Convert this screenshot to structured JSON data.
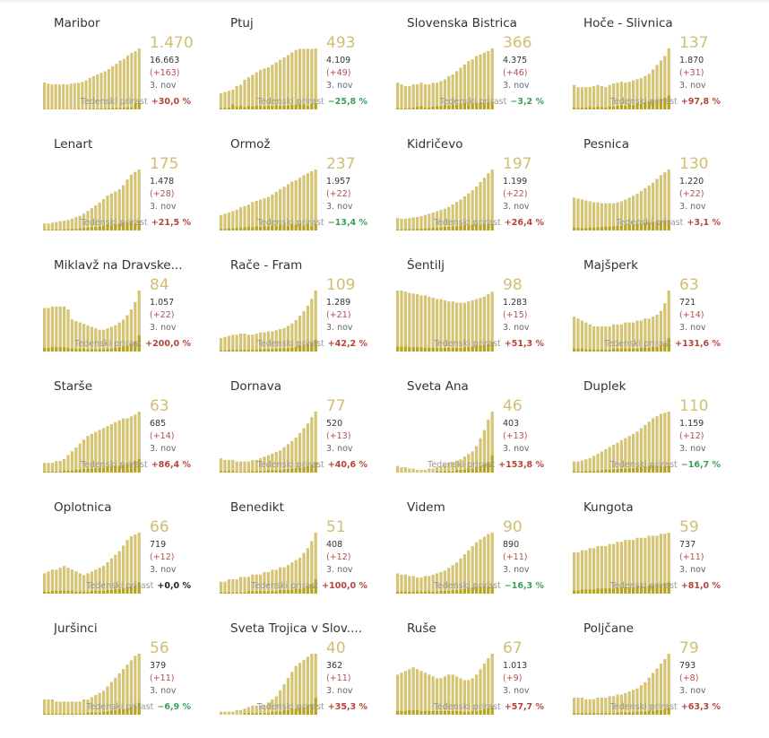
{
  "labels": {
    "weekly": "Tedenski prirast",
    "date": "3. nov"
  },
  "colors": {
    "bar": "#d4c473",
    "bar_dark": "#b9a41f",
    "active": "#cfbf72",
    "increase": "#b4453a",
    "decrease": "#39a05a"
  },
  "chart_data": [
    {
      "type": "bar",
      "name": "Maribor",
      "active": "1.470",
      "total": "16.663",
      "diff": "(+163)",
      "weekly": "+30,0 %",
      "trend": "pos",
      "values": [
        650,
        620,
        600,
        610,
        600,
        610,
        600,
        620,
        630,
        640,
        660,
        700,
        760,
        800,
        840,
        880,
        920,
        970,
        1040,
        1100,
        1180,
        1220,
        1300,
        1360,
        1400,
        1470
      ],
      "new_values": [
        8,
        7,
        6,
        6,
        7,
        8,
        8,
        7,
        9,
        10,
        12,
        14,
        18,
        20,
        22,
        24,
        26,
        30,
        32,
        38,
        40,
        42,
        46,
        50,
        140,
        163
      ]
    },
    {
      "type": "bar",
      "name": "Ptuj",
      "active": "493",
      "total": "4.109",
      "diff": "(+49)",
      "weekly": "−25,8 %",
      "trend": "neg",
      "values": [
        130,
        140,
        150,
        160,
        190,
        200,
        240,
        260,
        280,
        300,
        320,
        330,
        340,
        360,
        380,
        400,
        420,
        440,
        460,
        480,
        490,
        490,
        490,
        490,
        493
      ],
      "new_values": [
        10,
        12,
        14,
        40,
        20,
        30,
        18,
        26,
        22,
        30,
        28,
        24,
        30,
        26,
        34,
        28,
        30,
        32,
        38,
        36,
        40,
        42,
        30,
        44,
        49
      ]
    },
    {
      "type": "bar",
      "name": "Slovenska Bistrica",
      "active": "366",
      "total": "4.375",
      "diff": "(+46)",
      "weekly": "−3,2 %",
      "trend": "neg",
      "values": [
        160,
        150,
        140,
        140,
        150,
        150,
        160,
        150,
        150,
        160,
        160,
        170,
        180,
        200,
        210,
        230,
        250,
        270,
        290,
        300,
        320,
        330,
        340,
        350,
        366
      ],
      "new_values": [
        8,
        6,
        6,
        8,
        10,
        14,
        20,
        10,
        12,
        16,
        18,
        20,
        26,
        22,
        30,
        28,
        34,
        40,
        30,
        38,
        40,
        42,
        36,
        44,
        46
      ]
    },
    {
      "type": "bar",
      "name": "Hoče - Slivnica",
      "active": "137",
      "total": "1.870",
      "diff": "(+31)",
      "weekly": "+97,8 %",
      "trend": "pos",
      "values": [
        55,
        50,
        50,
        50,
        50,
        52,
        55,
        52,
        50,
        55,
        58,
        60,
        62,
        60,
        62,
        65,
        68,
        70,
        75,
        80,
        90,
        100,
        110,
        120,
        137
      ],
      "new_values": [
        4,
        3,
        4,
        4,
        5,
        4,
        6,
        5,
        4,
        6,
        6,
        8,
        10,
        8,
        12,
        10,
        14,
        12,
        16,
        18,
        20,
        22,
        24,
        26,
        31
      ]
    },
    {
      "type": "bar",
      "name": "Lenart",
      "active": "175",
      "total": "1.478",
      "diff": "(+28)",
      "weekly": "+21,5 %",
      "trend": "pos",
      "values": [
        20,
        20,
        22,
        24,
        26,
        28,
        30,
        34,
        38,
        42,
        48,
        56,
        64,
        72,
        80,
        90,
        100,
        106,
        112,
        118,
        130,
        146,
        160,
        168,
        175
      ],
      "new_values": [
        2,
        2,
        2,
        3,
        3,
        3,
        4,
        4,
        5,
        6,
        7,
        8,
        9,
        10,
        12,
        14,
        16,
        15,
        18,
        20,
        22,
        24,
        26,
        20,
        28
      ]
    },
    {
      "type": "bar",
      "name": "Ormož",
      "active": "237",
      "total": "1.957",
      "diff": "(+22)",
      "weekly": "−13,4 %",
      "trend": "neg",
      "values": [
        60,
        65,
        70,
        75,
        80,
        90,
        95,
        100,
        110,
        115,
        120,
        125,
        130,
        140,
        150,
        160,
        170,
        180,
        190,
        195,
        205,
        215,
        222,
        230,
        237
      ],
      "new_values": [
        6,
        6,
        8,
        8,
        10,
        10,
        12,
        14,
        12,
        16,
        14,
        18,
        16,
        20,
        18,
        22,
        20,
        18,
        24,
        22,
        26,
        20,
        24,
        18,
        22
      ]
    },
    {
      "type": "bar",
      "name": "Kidričevo",
      "active": "197",
      "total": "1.199",
      "diff": "(+22)",
      "weekly": "+26,4 %",
      "trend": "pos",
      "values": [
        40,
        38,
        38,
        40,
        42,
        44,
        46,
        50,
        54,
        58,
        62,
        66,
        70,
        76,
        84,
        92,
        100,
        110,
        120,
        130,
        142,
        156,
        170,
        185,
        197
      ],
      "new_values": [
        3,
        3,
        4,
        4,
        5,
        5,
        6,
        6,
        7,
        8,
        9,
        10,
        11,
        12,
        13,
        14,
        16,
        18,
        17,
        19,
        20,
        18,
        21,
        20,
        22
      ]
    },
    {
      "type": "bar",
      "name": "Pesnica",
      "active": "130",
      "total": "1.220",
      "diff": "(+22)",
      "weekly": "+3,1 %",
      "trend": "pos",
      "values": [
        70,
        68,
        66,
        64,
        62,
        60,
        60,
        58,
        58,
        58,
        58,
        60,
        62,
        66,
        70,
        74,
        78,
        84,
        90,
        96,
        102,
        110,
        118,
        124,
        130
      ],
      "new_values": [
        6,
        6,
        5,
        5,
        6,
        6,
        7,
        7,
        8,
        8,
        9,
        10,
        10,
        11,
        12,
        13,
        14,
        14,
        16,
        17,
        18,
        19,
        20,
        21,
        22
      ]
    },
    {
      "type": "bar",
      "name": "Miklavž na Dravske...",
      "active": "84",
      "total": "1.057",
      "diff": "(+22)",
      "weekly": "+200,0 %",
      "trend": "pos",
      "values": [
        60,
        60,
        62,
        62,
        62,
        62,
        58,
        44,
        42,
        40,
        38,
        36,
        34,
        32,
        30,
        30,
        32,
        34,
        36,
        40,
        44,
        50,
        58,
        68,
        84
      ],
      "new_values": [
        5,
        5,
        6,
        6,
        6,
        6,
        5,
        4,
        4,
        4,
        4,
        3,
        3,
        3,
        3,
        3,
        4,
        4,
        5,
        6,
        7,
        8,
        10,
        14,
        22
      ]
    },
    {
      "type": "bar",
      "name": "Rače - Fram",
      "active": "109",
      "total": "1.289",
      "diff": "(+21)",
      "weekly": "+42,2 %",
      "trend": "pos",
      "values": [
        24,
        26,
        28,
        30,
        30,
        32,
        32,
        30,
        30,
        32,
        34,
        34,
        36,
        36,
        38,
        40,
        42,
        46,
        50,
        56,
        64,
        72,
        82,
        94,
        109
      ],
      "new_values": [
        2,
        2,
        3,
        3,
        3,
        3,
        3,
        3,
        3,
        3,
        4,
        4,
        4,
        4,
        5,
        5,
        6,
        6,
        7,
        8,
        10,
        12,
        14,
        16,
        21
      ]
    },
    {
      "type": "bar",
      "name": "Šentilj",
      "active": "98",
      "total": "1.283",
      "diff": "(+15)",
      "weekly": "+51,3 %",
      "trend": "pos",
      "values": [
        100,
        100,
        98,
        96,
        95,
        94,
        92,
        92,
        90,
        88,
        86,
        86,
        84,
        82,
        82,
        80,
        80,
        80,
        82,
        84,
        86,
        88,
        90,
        94,
        98
      ],
      "new_values": [
        8,
        8,
        8,
        7,
        7,
        7,
        7,
        6,
        6,
        6,
        6,
        6,
        6,
        6,
        6,
        6,
        6,
        7,
        7,
        8,
        9,
        10,
        11,
        12,
        15
      ]
    },
    {
      "type": "bar",
      "name": "Majšperk",
      "active": "63",
      "total": "721",
      "diff": "(+14)",
      "weekly": "+131,6 %",
      "trend": "pos",
      "values": [
        36,
        34,
        32,
        30,
        28,
        26,
        26,
        26,
        26,
        26,
        28,
        28,
        28,
        30,
        30,
        30,
        32,
        32,
        34,
        34,
        36,
        38,
        42,
        50,
        63
      ],
      "new_values": [
        3,
        3,
        3,
        2,
        2,
        2,
        2,
        2,
        2,
        2,
        3,
        3,
        3,
        3,
        3,
        3,
        3,
        4,
        4,
        4,
        5,
        5,
        6,
        8,
        14
      ]
    },
    {
      "type": "bar",
      "name": "Starše",
      "active": "63",
      "total": "685",
      "diff": "(+14)",
      "weekly": "+86,4 %",
      "trend": "pos",
      "values": [
        10,
        10,
        10,
        12,
        12,
        14,
        18,
        22,
        26,
        30,
        34,
        38,
        40,
        42,
        44,
        46,
        48,
        50,
        52,
        54,
        56,
        56,
        58,
        60,
        63
      ],
      "new_values": [
        1,
        1,
        1,
        1,
        1,
        2,
        2,
        2,
        3,
        3,
        4,
        4,
        4,
        5,
        5,
        5,
        6,
        6,
        7,
        7,
        8,
        9,
        10,
        12,
        14
      ]
    },
    {
      "type": "bar",
      "name": "Dornava",
      "active": "77",
      "total": "520",
      "diff": "(+13)",
      "weekly": "+40,6 %",
      "trend": "pos",
      "values": [
        18,
        16,
        16,
        16,
        14,
        14,
        14,
        14,
        16,
        16,
        18,
        20,
        22,
        24,
        26,
        28,
        32,
        36,
        40,
        44,
        50,
        56,
        62,
        70,
        77
      ],
      "new_values": [
        2,
        2,
        2,
        2,
        1,
        1,
        1,
        1,
        2,
        2,
        2,
        2,
        3,
        3,
        3,
        3,
        4,
        4,
        5,
        5,
        6,
        7,
        8,
        10,
        13
      ]
    },
    {
      "type": "bar",
      "name": "Sveta Ana",
      "active": "46",
      "total": "403",
      "diff": "(+13)",
      "weekly": "+153,8 %",
      "trend": "pos",
      "values": [
        5,
        4,
        4,
        3,
        3,
        2,
        2,
        2,
        3,
        3,
        4,
        5,
        6,
        7,
        8,
        9,
        10,
        12,
        14,
        16,
        20,
        26,
        32,
        40,
        46
      ],
      "new_values": [
        0,
        0,
        0,
        0,
        0,
        0,
        0,
        0,
        0,
        0,
        1,
        1,
        1,
        1,
        1,
        2,
        2,
        2,
        3,
        3,
        4,
        5,
        6,
        8,
        13
      ]
    },
    {
      "type": "bar",
      "name": "Duplek",
      "active": "110",
      "total": "1.159",
      "diff": "(+12)",
      "weekly": "−16,7 %",
      "trend": "neg",
      "values": [
        20,
        20,
        22,
        24,
        26,
        30,
        34,
        38,
        42,
        46,
        50,
        54,
        58,
        62,
        66,
        70,
        74,
        80,
        86,
        92,
        98,
        102,
        106,
        108,
        110
      ],
      "new_values": [
        2,
        2,
        2,
        3,
        3,
        3,
        4,
        4,
        5,
        5,
        6,
        6,
        7,
        7,
        8,
        8,
        9,
        10,
        11,
        12,
        13,
        12,
        12,
        11,
        12
      ]
    },
    {
      "type": "bar",
      "name": "Oplotnica",
      "active": "66",
      "total": "719",
      "diff": "(+12)",
      "weekly": "+0,0 %",
      "trend": "zero",
      "values": [
        22,
        24,
        26,
        26,
        28,
        30,
        28,
        26,
        24,
        22,
        20,
        22,
        24,
        26,
        28,
        30,
        34,
        38,
        42,
        46,
        52,
        58,
        62,
        64,
        66
      ],
      "new_values": [
        2,
        2,
        3,
        3,
        3,
        3,
        3,
        3,
        2,
        2,
        2,
        2,
        3,
        3,
        3,
        3,
        4,
        4,
        5,
        5,
        6,
        7,
        8,
        9,
        12
      ]
    },
    {
      "type": "bar",
      "name": "Benedikt",
      "active": "51",
      "total": "408",
      "diff": "(+12)",
      "weekly": "+100,0 %",
      "trend": "pos",
      "values": [
        10,
        10,
        12,
        12,
        12,
        14,
        14,
        14,
        16,
        16,
        16,
        18,
        18,
        20,
        20,
        22,
        22,
        24,
        26,
        28,
        30,
        34,
        38,
        44,
        51
      ],
      "new_values": [
        1,
        1,
        1,
        1,
        1,
        1,
        1,
        2,
        2,
        2,
        2,
        2,
        2,
        2,
        2,
        3,
        3,
        3,
        3,
        4,
        4,
        5,
        6,
        8,
        12
      ]
    },
    {
      "type": "bar",
      "name": "Videm",
      "active": "90",
      "total": "890",
      "diff": "(+11)",
      "weekly": "−16,3 %",
      "trend": "neg",
      "values": [
        30,
        28,
        28,
        26,
        26,
        24,
        24,
        26,
        26,
        28,
        30,
        32,
        34,
        38,
        42,
        46,
        52,
        58,
        64,
        70,
        76,
        80,
        84,
        88,
        90
      ],
      "new_values": [
        3,
        3,
        3,
        3,
        3,
        3,
        3,
        3,
        3,
        3,
        3,
        4,
        4,
        4,
        5,
        5,
        6,
        7,
        8,
        9,
        10,
        10,
        11,
        10,
        11
      ]
    },
    {
      "type": "bar",
      "name": "Kungota",
      "active": "59",
      "total": "737",
      "diff": "(+11)",
      "weekly": "+81,0 %",
      "trend": "pos",
      "values": [
        40,
        40,
        42,
        42,
        44,
        44,
        46,
        46,
        46,
        48,
        48,
        50,
        50,
        52,
        52,
        52,
        54,
        54,
        54,
        56,
        56,
        56,
        58,
        58,
        59
      ],
      "new_values": [
        3,
        3,
        4,
        4,
        4,
        4,
        5,
        5,
        5,
        5,
        5,
        6,
        6,
        6,
        6,
        6,
        7,
        7,
        7,
        8,
        8,
        9,
        9,
        10,
        11
      ]
    },
    {
      "type": "bar",
      "name": "Juršinci",
      "active": "56",
      "total": "379",
      "diff": "(+11)",
      "weekly": "−6,9 %",
      "trend": "neg",
      "values": [
        14,
        14,
        14,
        12,
        12,
        12,
        12,
        12,
        12,
        12,
        14,
        14,
        16,
        18,
        20,
        22,
        26,
        30,
        34,
        38,
        42,
        46,
        50,
        54,
        56
      ],
      "new_values": [
        1,
        1,
        1,
        1,
        1,
        1,
        1,
        1,
        1,
        1,
        1,
        2,
        2,
        2,
        2,
        3,
        3,
        4,
        4,
        5,
        5,
        6,
        7,
        8,
        11
      ]
    },
    {
      "type": "bar",
      "name": "Sveta Trojica v Slov....",
      "active": "40",
      "total": "362",
      "diff": "(+11)",
      "weekly": "+35,3 %",
      "trend": "pos",
      "values": [
        2,
        2,
        2,
        2,
        3,
        3,
        4,
        5,
        6,
        6,
        6,
        6,
        8,
        10,
        12,
        16,
        20,
        24,
        28,
        32,
        34,
        36,
        38,
        40,
        40
      ],
      "new_values": [
        0,
        0,
        0,
        0,
        0,
        0,
        1,
        1,
        1,
        1,
        1,
        1,
        1,
        2,
        2,
        2,
        3,
        3,
        4,
        4,
        5,
        5,
        6,
        7,
        11
      ]
    },
    {
      "type": "bar",
      "name": "Ruše",
      "active": "67",
      "total": "1.013",
      "diff": "(+9)",
      "weekly": "+57,7 %",
      "trend": "pos",
      "values": [
        44,
        46,
        48,
        50,
        52,
        50,
        48,
        46,
        44,
        42,
        40,
        40,
        42,
        44,
        44,
        42,
        40,
        38,
        38,
        40,
        44,
        50,
        56,
        62,
        67
      ],
      "new_values": [
        4,
        4,
        4,
        5,
        5,
        5,
        4,
        4,
        4,
        4,
        4,
        4,
        4,
        4,
        4,
        4,
        4,
        3,
        3,
        4,
        4,
        5,
        6,
        7,
        9
      ]
    },
    {
      "type": "bar",
      "name": "Poljčane",
      "active": "79",
      "total": "793",
      "diff": "(+8)",
      "weekly": "+63,3 %",
      "trend": "pos",
      "values": [
        22,
        22,
        22,
        20,
        20,
        20,
        22,
        22,
        22,
        24,
        24,
        26,
        26,
        28,
        30,
        32,
        34,
        38,
        42,
        48,
        54,
        60,
        66,
        72,
        79
      ],
      "new_values": [
        2,
        2,
        2,
        2,
        2,
        2,
        2,
        2,
        2,
        2,
        2,
        3,
        3,
        3,
        3,
        3,
        4,
        4,
        4,
        5,
        5,
        6,
        6,
        7,
        8
      ]
    }
  ]
}
